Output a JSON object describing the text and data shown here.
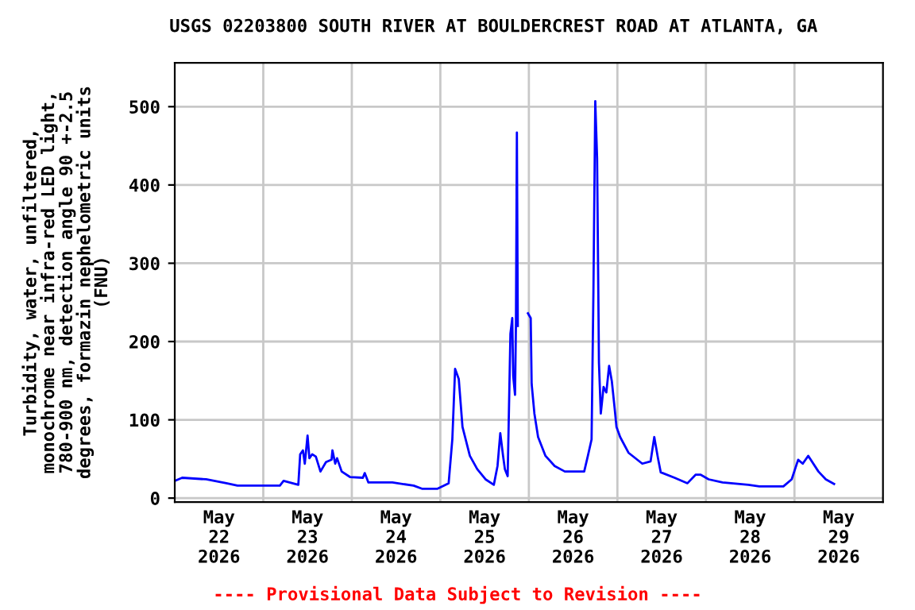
{
  "chart_data": {
    "type": "line",
    "title": "USGS 02203800 SOUTH RIVER AT BOULDERCREST ROAD AT ATLANTA, GA",
    "ylabel": "Turbidity, water, unfiltered,\nmonochrome near infra-red LED light,\n780-900 nm, detection angle 90 +-2.5\ndegrees, formazin nephelometric units\n(FNU)",
    "annotations": [
      "---- Provisional Data Subject to Revision ----"
    ],
    "x": [
      "2026-05-22T00:00",
      "2026-05-22T02:00",
      "2026-05-22T08:30",
      "2026-05-22T14:00",
      "2026-05-22T17:00",
      "2026-05-23T04:30",
      "2026-05-23T05:30",
      "2026-05-23T09:30",
      "2026-05-23T10:00",
      "2026-05-23T10:45",
      "2026-05-23T11:15",
      "2026-05-23T12:00",
      "2026-05-23T12:30",
      "2026-05-23T13:15",
      "2026-05-23T14:15",
      "2026-05-23T15:30",
      "2026-05-23T17:00",
      "2026-05-23T18:30",
      "2026-05-23T18:45",
      "2026-05-23T19:30",
      "2026-05-23T20:00",
      "2026-05-23T21:15",
      "2026-05-23T23:30",
      "2026-05-24T03:00",
      "2026-05-24T03:30",
      "2026-05-24T04:30",
      "2026-05-24T11:00",
      "2026-05-24T16:45",
      "2026-05-24T19:00",
      "2026-05-24T23:15",
      "2026-05-25T02:15",
      "2026-05-25T03:15",
      "2026-05-25T04:00",
      "2026-05-25T05:00",
      "2026-05-25T06:00",
      "2026-05-25T08:00",
      "2026-05-25T10:00",
      "2026-05-25T12:15",
      "2026-05-25T14:30",
      "2026-05-25T15:30",
      "2026-05-25T16:15",
      "2026-05-25T17:00",
      "2026-05-25T17:30",
      "2026-05-25T18:15",
      "2026-05-25T19:00",
      "2026-05-25T19:30",
      "2026-05-25T19:45",
      "2026-05-25T20:15",
      "2026-05-25T20:30",
      "2026-05-25T20:45",
      "2026-05-25T21:00",
      "2026-05-25T22:30",
      "2026-05-25T23:45",
      "2026-05-26T00:30",
      "2026-05-26T00:45",
      "2026-05-26T01:30",
      "2026-05-26T02:30",
      "2026-05-26T04:30",
      "2026-05-26T07:00",
      "2026-05-26T09:45",
      "2026-05-26T15:00",
      "2026-05-26T16:00",
      "2026-05-26T17:00",
      "2026-05-26T17:30",
      "2026-05-26T18:00",
      "2026-05-26T18:30",
      "2026-05-26T19:00",
      "2026-05-26T19:30",
      "2026-05-26T20:15",
      "2026-05-26T21:00",
      "2026-05-26T21:45",
      "2026-05-26T22:30",
      "2026-05-26T23:15",
      "2026-05-26T23:45",
      "2026-05-27T00:45",
      "2026-05-27T03:00",
      "2026-05-27T06:45",
      "2026-05-27T09:00",
      "2026-05-27T10:00",
      "2026-05-27T11:00",
      "2026-05-27T11:45",
      "2026-05-27T15:30",
      "2026-05-27T19:00",
      "2026-05-27T21:15",
      "2026-05-27T22:30",
      "2026-05-28T00:45",
      "2026-05-28T04:30",
      "2026-05-28T11:30",
      "2026-05-28T14:30",
      "2026-05-28T21:00",
      "2026-05-28T23:15",
      "2026-05-29T01:00",
      "2026-05-29T02:15",
      "2026-05-29T03:45",
      "2026-05-29T06:30",
      "2026-05-29T08:30",
      "2026-05-29T10:45"
    ],
    "series": [
      {
        "color": "#0000ff",
        "values": [
          22,
          26,
          24,
          19,
          16,
          16,
          22,
          17,
          56,
          61,
          44,
          80,
          51,
          56,
          53,
          34,
          46,
          49,
          61,
          44,
          51,
          34,
          27,
          26,
          32,
          20,
          20,
          16,
          12,
          12,
          19,
          75,
          165,
          152,
          91,
          54,
          37,
          24,
          17,
          41,
          83,
          54,
          37,
          28,
          210,
          230,
          156,
          132,
          224,
          467,
          220,
          null,
          236,
          230,
          146,
          108,
          78,
          54,
          41,
          34,
          34,
          54,
          75,
          264,
          507,
          434,
          173,
          108,
          142,
          135,
          169,
          149,
          115,
          91,
          78,
          58,
          44,
          47,
          78,
          51,
          33,
          26,
          19,
          30,
          30,
          24,
          20,
          17,
          15,
          15,
          24,
          49,
          44,
          54,
          34,
          24,
          18
        ]
      }
    ],
    "xlim": [
      "2026-05-22T00:00",
      "2026-05-30T00:00"
    ],
    "xticks": [
      {
        "value": "2026-05-22T12:00",
        "label": "May\n22\n2026"
      },
      {
        "value": "2026-05-23T00:00",
        "label": null
      },
      {
        "value": "2026-05-23T12:00",
        "label": "May\n23\n2026"
      },
      {
        "value": "2026-05-24T00:00",
        "label": null
      },
      {
        "value": "2026-05-24T12:00",
        "label": "May\n24\n2026"
      },
      {
        "value": "2026-05-25T00:00",
        "label": null
      },
      {
        "value": "2026-05-25T12:00",
        "label": "May\n25\n2026"
      },
      {
        "value": "2026-05-26T00:00",
        "label": null
      },
      {
        "value": "2026-05-26T12:00",
        "label": "May\n26\n2026"
      },
      {
        "value": "2026-05-27T00:00",
        "label": null
      },
      {
        "value": "2026-05-27T12:00",
        "label": "May\n27\n2026"
      },
      {
        "value": "2026-05-28T00:00",
        "label": null
      },
      {
        "value": "2026-05-28T12:00",
        "label": "May\n28\n2026"
      },
      {
        "value": "2026-05-29T00:00",
        "label": null
      },
      {
        "value": "2026-05-29T12:00",
        "label": "May\n29\n2026"
      }
    ],
    "ylim": [
      -5,
      556
    ],
    "yticks": [
      0,
      100,
      200,
      300,
      400,
      500
    ],
    "grid": true,
    "line_style": "solid"
  }
}
